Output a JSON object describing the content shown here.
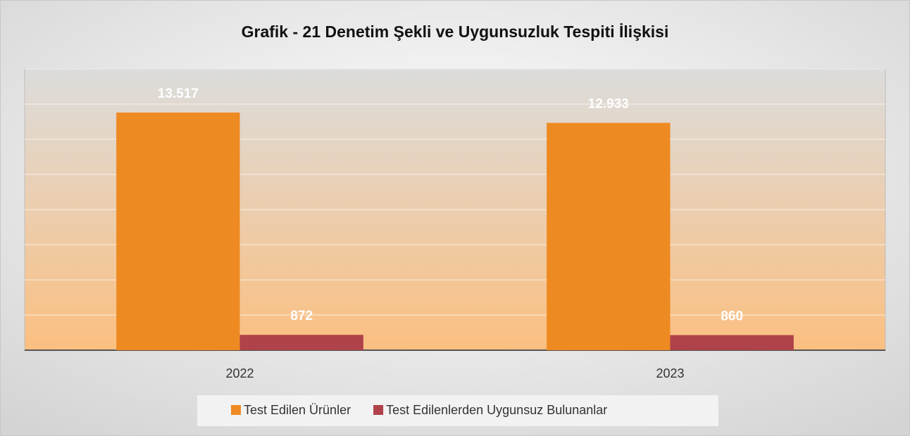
{
  "chart_data": {
    "type": "bar",
    "title": "Grafik - 21 Denetim Şekli ve Uygunsuzluk Tespiti İlişkisi",
    "categories": [
      "2022",
      "2023"
    ],
    "series": [
      {
        "name": "Test Edilen Ürünler",
        "color": "#ee8a22",
        "values": [
          13517,
          12933
        ],
        "value_labels": [
          "13.517",
          "12.933"
        ]
      },
      {
        "name": "Test Edilenlerden Uygunsuz Bulunanlar",
        "color": "#b0424a",
        "values": [
          872,
          860
        ],
        "value_labels": [
          "872",
          "860"
        ]
      }
    ],
    "ylim": [
      0,
      16000
    ],
    "yticks": [
      0,
      2000,
      4000,
      6000,
      8000,
      10000,
      12000,
      14000,
      16000
    ],
    "grid": true,
    "legend": "bottom"
  }
}
